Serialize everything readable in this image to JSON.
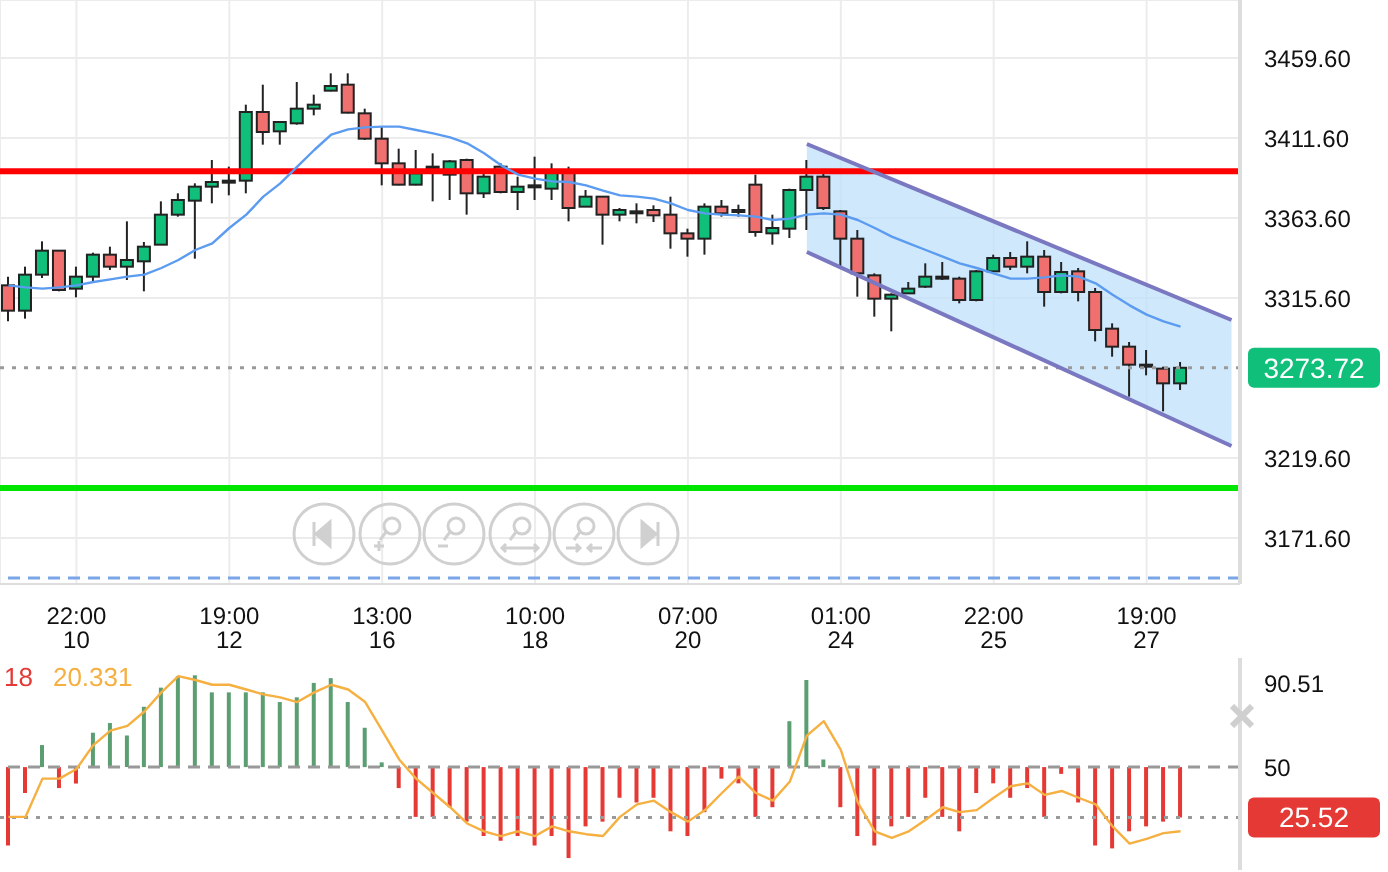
{
  "chart_data": [
    {
      "type": "candlestick",
      "categories": [
        null,
        null,
        null,
        null,
        "22:00\n10",
        null,
        null,
        null,
        null,
        null,
        null,
        null,
        null,
        "19:00\n12",
        null,
        null,
        null,
        null,
        null,
        null,
        null,
        null,
        "13:00\n16",
        null,
        null,
        null,
        null,
        null,
        null,
        null,
        null,
        "10:00\n18",
        null,
        null,
        null,
        null,
        null,
        null,
        null,
        null,
        "07:00\n20",
        null,
        null,
        null,
        null,
        null,
        null,
        null,
        null,
        "01:00\n24",
        null,
        null,
        null,
        null,
        null,
        null,
        null,
        null,
        "22:00\n25",
        null,
        null,
        null,
        null,
        null,
        null,
        null,
        null,
        "19:00\n27",
        null,
        null,
        null,
        null,
        null
      ],
      "ohlc": [
        [
          3323.2,
          3328.4,
          3301.6,
          3308
        ],
        [
          3308,
          3334.4,
          3303.2,
          3329.6
        ],
        [
          3329.6,
          3349.6,
          3327.6,
          3344
        ],
        [
          3344,
          3344,
          3319.6,
          3320.4
        ],
        [
          3321.2,
          3334.4,
          3316,
          3328.4
        ],
        [
          3328.4,
          3342.8,
          3325.2,
          3341.6
        ],
        [
          3341.6,
          3346.4,
          3332.4,
          3334.4
        ],
        [
          3334.4,
          3361.6,
          3326.4,
          3338.4
        ],
        [
          3337.6,
          3349.2,
          3319.6,
          3346.4
        ],
        [
          3347.6,
          3373.6,
          3347.6,
          3365.6
        ],
        [
          3365.6,
          3378.4,
          3364.4,
          3374.4
        ],
        [
          3374,
          3384.4,
          3339.2,
          3382.4
        ],
        [
          3382.4,
          3398.4,
          3372.4,
          3385.2
        ],
        [
          3385.2,
          3394.4,
          3377.2,
          3386
        ],
        [
          3386,
          3431.6,
          3378.4,
          3427.2
        ],
        [
          3427.2,
          3443.6,
          3407.6,
          3415.2
        ],
        [
          3415.6,
          3421.2,
          3407.6,
          3421.2
        ],
        [
          3420.4,
          3445.2,
          3419.6,
          3429.2
        ],
        [
          3429.2,
          3437.6,
          3425.2,
          3431.6
        ],
        [
          3440,
          3450.4,
          3439.6,
          3442.8
        ],
        [
          3443.6,
          3450.4,
          3426.4,
          3426.8
        ],
        [
          3426.4,
          3429.2,
          3410.4,
          3411.2
        ],
        [
          3411.2,
          3418.4,
          3383.2,
          3396.4
        ],
        [
          3396.4,
          3405.2,
          3383.2,
          3383.6
        ],
        [
          3383.6,
          3404.4,
          3383.2,
          3390.4
        ],
        [
          3394.4,
          3402.4,
          3373.6,
          3393.2
        ],
        [
          3389.6,
          3398.4,
          3374.4,
          3397.6
        ],
        [
          3398.4,
          3399.2,
          3365.6,
          3378.4
        ],
        [
          3378.4,
          3390.4,
          3375.6,
          3388.4
        ],
        [
          3394.4,
          3396.4,
          3378.4,
          3379.2
        ],
        [
          3379.2,
          3388.4,
          3368.4,
          3382.4
        ],
        [
          3382.4,
          3400.4,
          3374.4,
          3383.2
        ],
        [
          3381.2,
          3396.4,
          3374.4,
          3392.4
        ],
        [
          3391.6,
          3394.4,
          3361.6,
          3369.6
        ],
        [
          3370.4,
          3380.4,
          3370.4,
          3376.4
        ],
        [
          3376.4,
          3376.4,
          3347.6,
          3365.6
        ],
        [
          3365.6,
          3369.6,
          3361.6,
          3368.4
        ],
        [
          3367.6,
          3372.4,
          3360.4,
          3367.2
        ],
        [
          3368.4,
          3371.2,
          3361.2,
          3365.2
        ],
        [
          3365.6,
          3376.4,
          3345.2,
          3354.4
        ],
        [
          3354.4,
          3357.2,
          3340.4,
          3351.2
        ],
        [
          3351.2,
          3372.4,
          3341.6,
          3370.4
        ],
        [
          3370.4,
          3374.4,
          3364.4,
          3366.4
        ],
        [
          3367.2,
          3371.6,
          3364.4,
          3368.4
        ],
        [
          3383.6,
          3389.6,
          3352.4,
          3355.2
        ],
        [
          3354.4,
          3365.6,
          3347.6,
          3357.6
        ],
        [
          3357.2,
          3381.2,
          3351.6,
          3380.4
        ],
        [
          3380.4,
          3398.4,
          3356.4,
          3388.4
        ],
        [
          3388.4,
          3392.4,
          3368.4,
          3369.6
        ],
        [
          3367.6,
          3368.4,
          3333.6,
          3351.2
        ],
        [
          3351.2,
          3356.4,
          3316.4,
          3330.4
        ],
        [
          3329.2,
          3330.4,
          3304.4,
          3315.2
        ],
        [
          3315.2,
          3318.4,
          3295.6,
          3317.6
        ],
        [
          3318.4,
          3325.2,
          3318.4,
          3321.2
        ],
        [
          3322.4,
          3336.4,
          3321.6,
          3328.4
        ],
        [
          3328.4,
          3337.2,
          3326.4,
          3327.6
        ],
        [
          3327.2,
          3328.4,
          3312.4,
          3314.4
        ],
        [
          3314.4,
          3332.4,
          3313.6,
          3331.6
        ],
        [
          3331.6,
          3341.6,
          3331.2,
          3339.6
        ],
        [
          3339.6,
          3343.2,
          3332.4,
          3334.4
        ],
        [
          3334.4,
          3349.6,
          3330.4,
          3340.4
        ],
        [
          3340.4,
          3344.4,
          3310.4,
          3319.2
        ],
        [
          3319.2,
          3337.2,
          3318.4,
          3331.2
        ],
        [
          3331.6,
          3333.6,
          3313.6,
          3319.2
        ],
        [
          3319.2,
          3321.6,
          3289.6,
          3296.4
        ],
        [
          3297.2,
          3300.4,
          3280.4,
          3286.4
        ],
        [
          3286.4,
          3289.2,
          3256.4,
          3275.6
        ],
        [
          3275.6,
          3284.4,
          3269.2,
          3274.4
        ],
        [
          3273.2,
          3274.4,
          3247.6,
          3264.4
        ],
        [
          3264.4,
          3277.2,
          3260.4,
          3273.72
        ],
        null,
        null,
        null
      ],
      "colors": [
        "#f07070",
        "#0fbf7a",
        "#0fbf7a",
        "#f07070",
        "#0fbf7a",
        "#0fbf7a",
        "#f07070",
        "#0fbf7a",
        "#0fbf7a",
        "#0fbf7a",
        "#0fbf7a",
        "#0fbf7a",
        "#0fbf7a",
        "#0fbf7a",
        "#0fbf7a",
        "#f07070",
        "#0fbf7a",
        "#0fbf7a",
        "#0fbf7a",
        "#0fbf7a",
        "#f07070",
        "#f07070",
        "#f07070",
        "#f07070",
        "#0fbf7a",
        "#f07070",
        "#0fbf7a",
        "#f07070",
        "#0fbf7a",
        "#f07070",
        "#0fbf7a",
        "#0fbf7a",
        "#0fbf7a",
        "#f07070",
        "#0fbf7a",
        "#f07070",
        "#0fbf7a",
        "#f07070",
        "#f07070",
        "#f07070",
        "#f07070",
        "#0fbf7a",
        "#f07070",
        "#0fbf7a",
        "#f07070",
        "#0fbf7a",
        "#0fbf7a",
        "#0fbf7a",
        "#f07070",
        "#f07070",
        "#f07070",
        "#f07070",
        "#0fbf7a",
        "#0fbf7a",
        "#0fbf7a",
        "#f07070",
        "#f07070",
        "#0fbf7a",
        "#0fbf7a",
        "#f07070",
        "#0fbf7a",
        "#f07070",
        "#0fbf7a",
        "#f07070",
        "#f07070",
        "#f07070",
        "#f07070",
        "#f07070",
        "#f07070",
        "#0fbf7a",
        null,
        null,
        null
      ],
      "series": [
        {
          "type": "line",
          "color": "#5b9bf0",
          "values": [
            3323.2,
            3322,
            3321.2,
            3322,
            3323.2,
            3325.2,
            3326.8,
            3328.4,
            3329.6,
            3333.6,
            3338.4,
            3344.4,
            3348.4,
            3357.6,
            3365.6,
            3376.4,
            3384.4,
            3394.4,
            3404.4,
            3413.6,
            3416.8,
            3418,
            3418.4,
            3418.4,
            3416.4,
            3414.4,
            3412,
            3408.4,
            3402.4,
            3395.2,
            3389.6,
            3387.2,
            3385.6,
            3385.2,
            3383.2,
            3380,
            3377.2,
            3376.4,
            3375.2,
            3372.4,
            3368.4,
            3366.4,
            3365.6,
            3365.2,
            3364.4,
            3362.4,
            3363.2,
            3365.6,
            3366.4,
            3365.6,
            3362.4,
            3357.6,
            3352.4,
            3348.4,
            3344.4,
            3340.4,
            3336.4,
            3333.6,
            3330.4,
            3327.2,
            3327.2,
            3328,
            3329.2,
            3328.4,
            3324.4,
            3317.6,
            3311.2,
            3305.6,
            3301.6,
            3298.4,
            null,
            null,
            null
          ]
        },
        {
          "type": "line",
          "color": "#7a78c0",
          "values": [
            null,
            null,
            null,
            null,
            null,
            null,
            null,
            null,
            null,
            null,
            null,
            null,
            null,
            null,
            null,
            null,
            null,
            null,
            null,
            null,
            null,
            null,
            null,
            null,
            null,
            null,
            null,
            null,
            null,
            null,
            null,
            null,
            null,
            null,
            null,
            null,
            null,
            null,
            null,
            null,
            null,
            null,
            null,
            null,
            null,
            null,
            null,
            3408,
            null,
            null,
            null,
            null,
            null,
            null,
            null,
            null,
            null,
            null,
            null,
            null,
            null,
            null,
            null,
            null,
            null,
            null,
            null,
            null,
            null,
            null,
            null,
            null,
            3302.4
          ]
        },
        {
          "type": "line",
          "color": "#7a78c0",
          "values": [
            null,
            null,
            null,
            null,
            null,
            null,
            null,
            null,
            null,
            null,
            null,
            null,
            null,
            null,
            null,
            null,
            null,
            null,
            null,
            null,
            null,
            null,
            null,
            null,
            null,
            null,
            null,
            null,
            null,
            null,
            null,
            null,
            null,
            null,
            null,
            null,
            null,
            null,
            null,
            null,
            null,
            null,
            null,
            null,
            null,
            null,
            null,
            3343.2,
            null,
            null,
            null,
            null,
            null,
            null,
            null,
            null,
            null,
            null,
            null,
            null,
            null,
            null,
            null,
            null,
            null,
            null,
            null,
            null,
            null,
            null,
            null,
            null,
            3226.8
          ],
          "upper": [
            null,
            null,
            null,
            null,
            null,
            null,
            null,
            null,
            null,
            null,
            null,
            null,
            null,
            null,
            null,
            null,
            null,
            null,
            null,
            null,
            null,
            null,
            null,
            null,
            null,
            null,
            null,
            null,
            null,
            null,
            null,
            null,
            null,
            null,
            null,
            null,
            null,
            null,
            null,
            null,
            null,
            null,
            null,
            null,
            null,
            null,
            null,
            3408,
            null,
            null,
            null,
            null,
            null,
            null,
            null,
            null,
            null,
            null,
            null,
            null,
            null,
            null,
            null,
            null,
            null,
            null,
            null,
            null,
            null,
            null,
            null,
            null,
            3302.4
          ],
          "lower": [
            null,
            null,
            null,
            null,
            null,
            null,
            null,
            null,
            null,
            null,
            null,
            null,
            null,
            null,
            null,
            null,
            null,
            null,
            null,
            null,
            null,
            null,
            null,
            null,
            null,
            null,
            null,
            null,
            null,
            null,
            null,
            null,
            null,
            null,
            null,
            null,
            null,
            null,
            null,
            null,
            null,
            null,
            null,
            null,
            null,
            null,
            null,
            3343.2,
            null,
            null,
            null,
            null,
            null,
            null,
            null,
            null,
            null,
            null,
            null,
            null,
            null,
            null,
            null,
            null,
            null,
            null,
            null,
            null,
            null,
            null,
            null,
            null,
            3226.8
          ]
        }
      ],
      "ylim": [
        3144,
        3494.4
      ],
      "yticks": [
        {
          "value": 3171.6,
          "label": "3171.60"
        },
        {
          "value": 3219.6,
          "label": "3219.60"
        },
        {
          "value": 3315.6,
          "label": "3315.60"
        },
        {
          "value": 3363.6,
          "label": "3363.60"
        },
        {
          "value": 3411.6,
          "label": "3411.60"
        },
        {
          "value": 3459.6,
          "label": "3459.60"
        }
      ],
      "ref_lines": [
        {
          "axis": "y",
          "value": 3391.6,
          "color": "#ff0000"
        },
        {
          "axis": "y",
          "value": 3201.6,
          "color": "#00e600"
        },
        {
          "axis": "y",
          "value": 3147.6,
          "color": "#7aa6e8",
          "line_style": "dashed"
        },
        {
          "axis": "y",
          "value": 3273.72,
          "label": "3273.72",
          "color": "#9a9a9a",
          "line_style": "dotted"
        }
      ],
      "grid": true
    },
    {
      "type": "bar",
      "categories": [
        null,
        null,
        null,
        null,
        null,
        null,
        null,
        null,
        null,
        null,
        null,
        null,
        null,
        null,
        null,
        null,
        null,
        null,
        null,
        null,
        null,
        null,
        null,
        null,
        null,
        null,
        null,
        null,
        null,
        null,
        null,
        null,
        null,
        null,
        null,
        null,
        null,
        null,
        null,
        null,
        null,
        null,
        null,
        null,
        null,
        null,
        null,
        null,
        null,
        null,
        null,
        null,
        null,
        null,
        null,
        null,
        null,
        null,
        null,
        null,
        null,
        null,
        null,
        null,
        null,
        null,
        null,
        null,
        null,
        null,
        null,
        null,
        null
      ],
      "series": [
        {
          "type": "bar",
          "name": "18",
          "color": "#e53935",
          "base": [
            50,
            50,
            50,
            50,
            50,
            50,
            50,
            50,
            50,
            50,
            50,
            50,
            50,
            50,
            50,
            50,
            50,
            50,
            50,
            50,
            50,
            50,
            50,
            50,
            50,
            50,
            50,
            50,
            50,
            50,
            50,
            50,
            50,
            50,
            50,
            50,
            50,
            50,
            50,
            50,
            50,
            50,
            50,
            50,
            50,
            50,
            50,
            50,
            50,
            50,
            50,
            50,
            50,
            50,
            50,
            50,
            50,
            50,
            50,
            50,
            50,
            50,
            50,
            50,
            50,
            50,
            50,
            50,
            50,
            50,
            null,
            null,
            null
          ],
          "values": [
            -38.1,
            -12.6,
            10.7,
            -10.2,
            -8,
            16.7,
            21.4,
            15.3,
            29.3,
            38.6,
            44.2,
            44.6,
            36.3,
            36.3,
            36.3,
            36.3,
            31.6,
            33.9,
            40.9,
            43.2,
            31.6,
            19.1,
            2.3,
            -10.2,
            -24.2,
            -24.2,
            -19.5,
            -26.5,
            -33.5,
            -35.8,
            -33.5,
            -38.1,
            -33.5,
            -44.2,
            -28.8,
            -26.5,
            -14.9,
            -17.2,
            -14.9,
            -31.2,
            -33.5,
            -21.9,
            -5.6,
            -7.9,
            -24.2,
            -19.5,
            22.3,
            42.3,
            3.7,
            -19.5,
            -33.5,
            -38.1,
            -28.8,
            -24.2,
            -14.9,
            -24.2,
            -31.2,
            -12.6,
            -7.9,
            -14.9,
            -10.2,
            -24.2,
            -3.3,
            -17.2,
            -38.1,
            -39.5,
            -31.2,
            -28.8,
            -26.5,
            -24.48,
            null,
            null,
            null
          ],
          "colors": [
            "#e53935",
            "#e53935",
            "#5b9e72",
            "#e53935",
            "#e53935",
            "#5b9e72",
            "#5b9e72",
            "#5b9e72",
            "#5b9e72",
            "#5b9e72",
            "#5b9e72",
            "#5b9e72",
            "#5b9e72",
            "#5b9e72",
            "#5b9e72",
            "#5b9e72",
            "#5b9e72",
            "#5b9e72",
            "#5b9e72",
            "#5b9e72",
            "#5b9e72",
            "#5b9e72",
            "#5b9e72",
            "#e53935",
            "#e53935",
            "#e53935",
            "#e53935",
            "#e53935",
            "#e53935",
            "#e53935",
            "#e53935",
            "#e53935",
            "#e53935",
            "#e53935",
            "#e53935",
            "#e53935",
            "#e53935",
            "#e53935",
            "#e53935",
            "#e53935",
            "#e53935",
            "#e53935",
            "#e53935",
            "#e53935",
            "#e53935",
            "#e53935",
            "#5b9e72",
            "#5b9e72",
            "#5b9e72",
            "#e53935",
            "#e53935",
            "#e53935",
            "#e53935",
            "#e53935",
            "#e53935",
            "#e53935",
            "#e53935",
            "#e53935",
            "#e53935",
            "#e53935",
            "#e53935",
            "#e53935",
            "#e53935",
            "#e53935",
            "#e53935",
            "#e53935",
            "#e53935",
            "#e53935",
            "#e53935",
            "#e53935",
            null,
            null,
            null
          ]
        },
        {
          "type": "line",
          "name": "20.331",
          "color": "#f5b041",
          "values": [
            25.8,
            25.8,
            44.4,
            44.4,
            49.1,
            60.7,
            67.7,
            70,
            77,
            86.3,
            94.2,
            92.3,
            90,
            90,
            87.7,
            85.3,
            83.9,
            81.6,
            86.3,
            90,
            87.7,
            81.6,
            67.7,
            53.7,
            44.4,
            37.4,
            30.5,
            22.6,
            18.8,
            16.5,
            18.8,
            16.5,
            21.2,
            18.8,
            17.4,
            16.5,
            25.8,
            31.9,
            33.7,
            28.1,
            23.5,
            29.1,
            37.4,
            45.4,
            37.4,
            33.7,
            43,
            65.3,
            72.3,
            58.4,
            32.8,
            18.8,
            15.6,
            18.8,
            24.4,
            30.5,
            28.1,
            29.1,
            35.1,
            40.7,
            42.1,
            36.5,
            38.4,
            35.1,
            31.9,
            21.2,
            12.8,
            15.1,
            17.9,
            18.8,
            null,
            null,
            null
          ]
        }
      ],
      "ylim": [
        0,
        103
      ],
      "yticks": [
        50,
        90.51
      ],
      "ref_lines": [
        {
          "axis": "y",
          "value": 50,
          "color": "#999999",
          "line_style": "dashed"
        },
        {
          "axis": "y",
          "value": 25.52,
          "label": "25.52",
          "color": "#9a9a9a",
          "line_style": "dotted"
        }
      ],
      "legend": "top left",
      "tick_labels": "y"
    }
  ]
}
